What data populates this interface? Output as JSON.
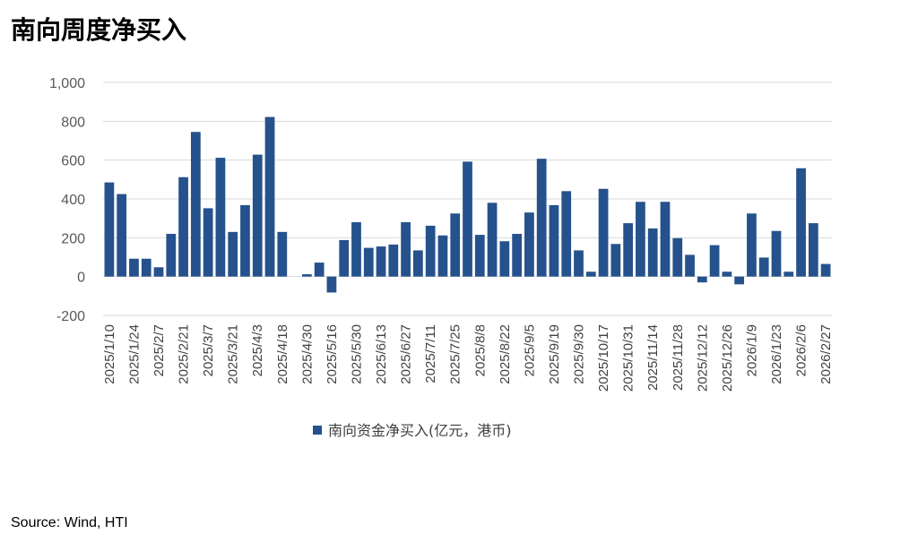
{
  "page": {
    "title": "南向周度净买入",
    "source": "Source: Wind, HTI"
  },
  "chart_data": {
    "type": "bar",
    "title": "",
    "xlabel": "",
    "ylabel": "",
    "ylim": [
      -200,
      1000
    ],
    "yticks": [
      -200,
      0,
      200,
      400,
      600,
      800,
      1000
    ],
    "ytick_labels": [
      "-200",
      "0",
      "200",
      "400",
      "600",
      "800",
      "1,000"
    ],
    "grid": true,
    "legend_position": "bottom",
    "bar_color": "#25528C",
    "xtick_labels": [
      "2025/1/10",
      "2025/1/24",
      "2025/2/7",
      "2025/2/21",
      "2025/3/7",
      "2025/3/21",
      "2025/4/3",
      "2025/4/18",
      "2025/4/30",
      "2025/5/16",
      "2025/5/30",
      "2025/6/13",
      "2025/6/27",
      "2025/7/11",
      "2025/7/25",
      "2025/8/8",
      "2025/8/22",
      "2025/9/5",
      "2025/9/19",
      "2025/9/30",
      "2025/10/17",
      "2025/10/31",
      "2025/11/14",
      "2025/11/28",
      "2025/12/12",
      "2025/12/26",
      "2026/1/9",
      "2026/1/23",
      "2026/2/6",
      "2026/2/27"
    ],
    "series": [
      {
        "name": "南向资金净买入(亿元，港币)",
        "values": [
          485,
          425,
          92,
          92,
          48,
          220,
          512,
          745,
          352,
          612,
          230,
          368,
          628,
          822,
          230,
          0,
          12,
          72,
          -82,
          188,
          280,
          148,
          155,
          165,
          280,
          135,
          262,
          212,
          325,
          592,
          215,
          380,
          182,
          220,
          330,
          607,
          368,
          440,
          135,
          25,
          452,
          168,
          275,
          385,
          248,
          385,
          198,
          112,
          -30,
          162,
          25,
          -40,
          325,
          98,
          235,
          25,
          558,
          275,
          65
        ]
      }
    ]
  }
}
